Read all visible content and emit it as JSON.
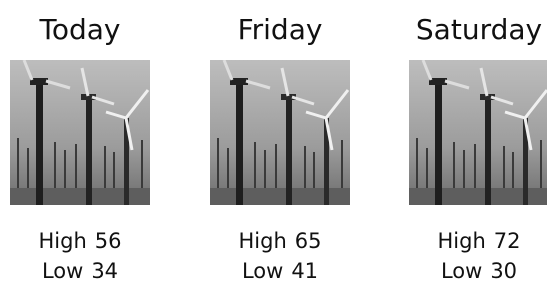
{
  "days": [
    {
      "name": "Today",
      "high": {
        "label": "High",
        "value": 56
      },
      "low": {
        "label": "Low",
        "value": 34
      }
    },
    {
      "name": "Friday",
      "high": {
        "label": "High",
        "value": 65
      },
      "low": {
        "label": "Low",
        "value": 41
      }
    },
    {
      "name": "Saturday",
      "high": {
        "label": "High",
        "value": 72
      },
      "low": {
        "label": "Low",
        "value": 30
      }
    }
  ]
}
